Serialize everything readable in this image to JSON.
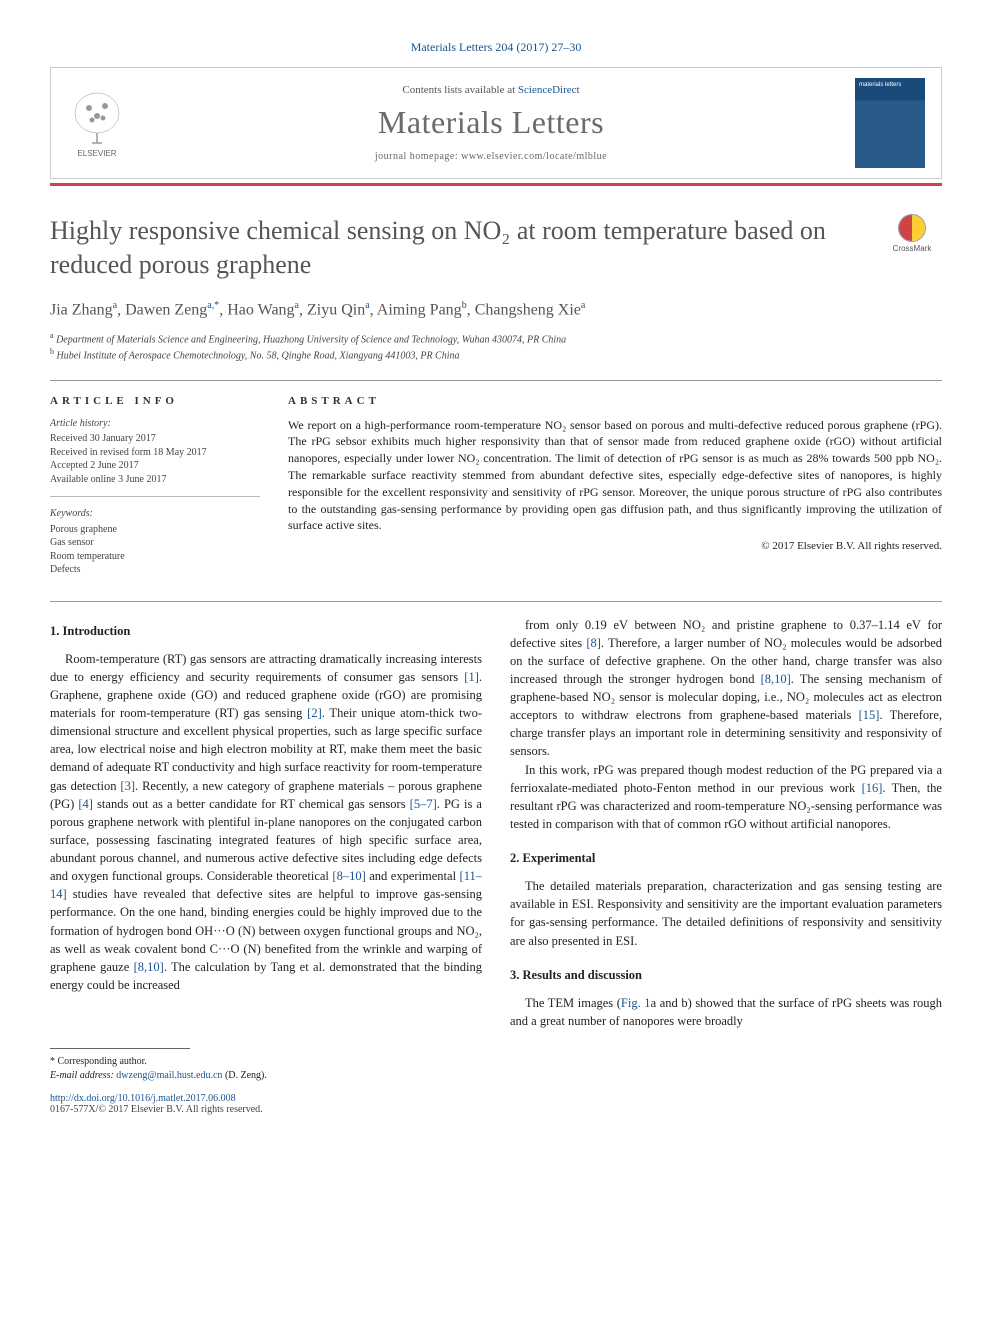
{
  "header": {
    "citation": "Materials Letters 204 (2017) 27–30",
    "contents_prefix": "Contents lists available at ",
    "contents_link": "ScienceDirect",
    "journal": "Materials Letters",
    "homepage_label": "journal homepage: ",
    "homepage_url": "www.elsevier.com/locate/mlblue",
    "publisher": "ELSEVIER"
  },
  "crossmark": "CrossMark",
  "title": "Highly responsive chemical sensing on NO₂ at room temperature based on reduced porous graphene",
  "authors_html": "Jia Zhang<sup>a</sup>, Dawen Zeng<sup>a,*</sup>, Hao Wang<sup>a</sup>, Ziyu Qin<sup>a</sup>, Aiming Pang<sup>b</sup>, Changsheng Xie<sup>a</sup>",
  "affiliations": [
    {
      "sup": "a",
      "text": "Department of Materials Science and Engineering, Huazhong University of Science and Technology, Wuhan 430074, PR China"
    },
    {
      "sup": "b",
      "text": "Hubei Institute of Aerospace Chemotechnology, No. 58, Qinghe Road, Xiangyang 441003, PR China"
    }
  ],
  "info": {
    "heading": "ARTICLE INFO",
    "history_label": "Article history:",
    "history": [
      "Received 30 January 2017",
      "Received in revised form 18 May 2017",
      "Accepted 2 June 2017",
      "Available online 3 June 2017"
    ],
    "keywords_label": "Keywords:",
    "keywords": [
      "Porous graphene",
      "Gas sensor",
      "Room temperature",
      "Defects"
    ]
  },
  "abstract": {
    "heading": "ABSTRACT",
    "text": "We report on a high-performance room-temperature NO₂ sensor based on porous and multi-defective reduced porous graphene (rPG). The rPG sebsor exhibits much higher responsivity than that of sensor made from reduced graphene oxide (rGO) without artificial nanopores, especially under lower NO₂ concentration. The limit of detection of rPG sensor is as much as 28% towards 500 ppb NO₂. The remarkable surface reactivity stemmed from abundant defective sites, especially edge-defective sites of nanopores, is highly responsible for the excellent responsivity and sensitivity of rPG sensor. Moreover, the unique porous structure of rPG also contributes to the outstanding gas-sensing performance by providing open gas diffusion path, and thus significantly improving the utilization of surface active sites.",
    "copyright": "© 2017 Elsevier B.V. All rights reserved."
  },
  "sections": {
    "s1": {
      "heading": "1. Introduction",
      "p1": "Room-temperature (RT) gas sensors are attracting dramatically increasing interests due to energy efficiency and security requirements of consumer gas sensors [1]. Graphene, graphene oxide (GO) and reduced graphene oxide (rGO) are promising materials for room-temperature (RT) gas sensing [2]. Their unique atom-thick two-dimensional structure and excellent physical properties, such as large specific surface area, low electrical noise and high electron mobility at RT, make them meet the basic demand of adequate RT conductivity and high surface reactivity for room-temperature gas detection [3]. Recently, a new category of graphene materials – porous graphene (PG) [4] stands out as a better candidate for RT chemical gas sensors [5–7]. PG is a porous graphene network with plentiful in-plane nanopores on the conjugated carbon surface, possessing fascinating integrated features of high specific surface area, abundant porous channel, and numerous active defective sites including edge defects and oxygen functional groups. Considerable theoretical [8–10] and experimental [11–14] studies have revealed that defective sites are helpful to improve gas-sensing performance. On the one hand, binding energies could be highly improved due to the formation of hydrogen bond OH···O (N) between oxygen functional groups and NO₂, as well as weak covalent bond C···O (N) benefited from the wrinkle and warping of graphene gauze [8,10]. The calculation by Tang et al. demonstrated that the binding energy could be increased",
      "p2": "from only 0.19 eV between NO₂ and pristine graphene to 0.37–1.14 eV for defective sites [8]. Therefore, a larger number of NO₂ molecules would be adsorbed on the surface of defective graphene. On the other hand, charge transfer was also increased through the stronger hydrogen bond [8,10]. The sensing mechanism of graphene-based NO₂ sensor is molecular doping, i.e., NO₂ molecules act as electron acceptors to withdraw electrons from graphene-based materials [15]. Therefore, charge transfer plays an important role in determining sensitivity and responsivity of sensors.",
      "p3": "In this work, rPG was prepared though modest reduction of the PG prepared via a ferrioxalate-mediated photo-Fenton method in our previous work [16]. Then, the resultant rPG was characterized and room-temperature NO₂-sensing performance was tested in comparison with that of common rGO without artificial nanopores."
    },
    "s2": {
      "heading": "2. Experimental",
      "p1": "The detailed materials preparation, characterization and gas sensing testing are available in ESI. Responsivity and sensitivity are the important evaluation parameters for gas-sensing performance. The detailed definitions of responsivity and sensitivity are also presented in ESI."
    },
    "s3": {
      "heading": "3. Results and discussion",
      "p1": "The TEM images (Fig. 1a and b) showed that the surface of rPG sheets was rough and a great number of nanopores were broadly"
    }
  },
  "footer": {
    "corr": "* Corresponding author.",
    "email_label": "E-mail address: ",
    "email": "dwzeng@mail.hust.edu.cn",
    "email_who": " (D. Zeng).",
    "doi": "http://dx.doi.org/10.1016/j.matlet.2017.06.008",
    "issn": "0167-577X/© 2017 Elsevier B.V. All rights reserved."
  },
  "colors": {
    "link": "#1a5490",
    "accent": "#c44",
    "title_gray": "#555555"
  }
}
